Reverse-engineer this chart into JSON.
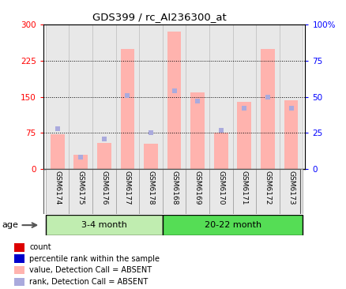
{
  "title": "GDS399 / rc_AI236300_at",
  "samples": [
    "GSM6174",
    "GSM6175",
    "GSM6176",
    "GSM6177",
    "GSM6178",
    "GSM6168",
    "GSM6169",
    "GSM6170",
    "GSM6171",
    "GSM6172",
    "GSM6173"
  ],
  "group1_count": 5,
  "group1_label": "3-4 month",
  "group2_label": "20-22 month",
  "absent_values": [
    72,
    30,
    55,
    250,
    53,
    285,
    160,
    75,
    140,
    250,
    143
  ],
  "rank_markers": [
    28,
    8,
    21,
    51,
    25,
    54,
    47,
    27,
    42,
    50,
    42
  ],
  "ylim_left": [
    0,
    300
  ],
  "ylim_right": [
    0,
    100
  ],
  "left_ticks": [
    0,
    75,
    150,
    225,
    300
  ],
  "right_ticks": [
    0,
    25,
    50,
    75,
    100
  ],
  "right_tick_labels": [
    "0",
    "25",
    "50",
    "75",
    "100%"
  ],
  "bar_color_absent": "#ffb3ae",
  "rank_color_absent": "#aaaadd",
  "group1_color": "#c0edb0",
  "group2_color": "#55dd55",
  "legend_items": [
    {
      "label": "count",
      "color": "#dd0000"
    },
    {
      "label": "percentile rank within the sample",
      "color": "#0000cc"
    },
    {
      "label": "value, Detection Call = ABSENT",
      "color": "#ffb3ae"
    },
    {
      "label": "rank, Detection Call = ABSENT",
      "color": "#aaaadd"
    }
  ],
  "title_fontsize": 9.5,
  "tick_fontsize": 7.5,
  "legend_fontsize": 7,
  "sample_fontsize": 6.5
}
